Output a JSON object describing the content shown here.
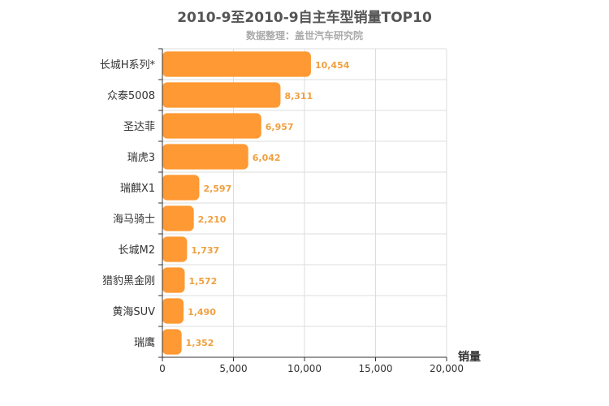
{
  "chart_data": {
    "type": "bar",
    "orientation": "horizontal",
    "title": "2010-9至2010-9自主车型销量TOP10",
    "subtitle": "数据整理：盖世汽车研究院",
    "categories": [
      "长城H系列*",
      "众泰5008",
      "圣达菲",
      "瑞虎3",
      "瑞麒X1",
      "海马骑士",
      "长城M2",
      "猎豹黑金刚",
      "黄海SUV",
      "瑞鹰"
    ],
    "values": [
      10454,
      8311,
      6957,
      6042,
      2597,
      2210,
      1737,
      1572,
      1490,
      1352
    ],
    "value_labels": [
      "10,454",
      "8,311",
      "6,957",
      "6,042",
      "2,597",
      "2,210",
      "1,737",
      "1,572",
      "1,490",
      "1,352"
    ],
    "xlabel": "销量",
    "ylabel": "",
    "xlim": [
      0,
      20000
    ],
    "ticks": [
      0,
      5000,
      10000,
      15000,
      20000
    ],
    "tick_labels": [
      "0",
      "5,000",
      "10,000",
      "15,000",
      "20,000"
    ],
    "grid": true,
    "bar_color": "#ff9933",
    "label_color": "#f0a040"
  }
}
